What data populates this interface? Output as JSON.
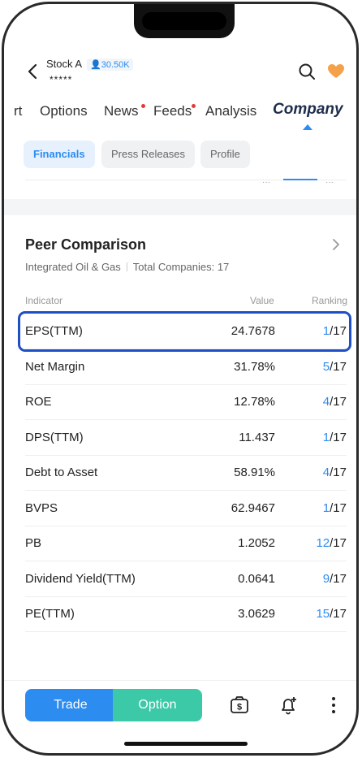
{
  "header": {
    "stock_name": "Stock A",
    "followers": "30.50K",
    "stars": "*****"
  },
  "tabs": [
    {
      "label": "rt"
    },
    {
      "label": "Options"
    },
    {
      "label": "News"
    },
    {
      "label": "Feeds"
    },
    {
      "label": "Analysis"
    },
    {
      "label": "Company"
    }
  ],
  "subtabs": [
    {
      "label": "Financials"
    },
    {
      "label": "Press Releases"
    },
    {
      "label": "Profile"
    }
  ],
  "mini": {
    "dots_left": "···",
    "dots_right": "···"
  },
  "peer": {
    "title": "Peer Comparison",
    "industry": "Integrated Oil & Gas",
    "total": "Total Companies: 17",
    "columns": {
      "indicator": "Indicator",
      "value": "Value",
      "ranking": "Ranking"
    },
    "rows": [
      {
        "indicator": "EPS(TTM)",
        "value": "24.7678",
        "rank": "1",
        "total": "/17"
      },
      {
        "indicator": "Net Margin",
        "value": "31.78%",
        "rank": "5",
        "total": "/17"
      },
      {
        "indicator": "ROE",
        "value": "12.78%",
        "rank": "4",
        "total": "/17"
      },
      {
        "indicator": "DPS(TTM)",
        "value": "11.437",
        "rank": "1",
        "total": "/17"
      },
      {
        "indicator": "Debt to Asset",
        "value": "58.91%",
        "rank": "4",
        "total": "/17"
      },
      {
        "indicator": "BVPS",
        "value": "62.9467",
        "rank": "1",
        "total": "/17"
      },
      {
        "indicator": "PB",
        "value": "1.2052",
        "rank": "12",
        "total": "/17"
      },
      {
        "indicator": "Dividend Yield(TTM)",
        "value": "0.0641",
        "rank": "9",
        "total": "/17"
      },
      {
        "indicator": "PE(TTM)",
        "value": "3.0629",
        "rank": "15",
        "total": "/17"
      }
    ]
  },
  "bottom": {
    "trade": "Trade",
    "option": "Option"
  },
  "colors": {
    "accent": "#2d8cf0",
    "option": "#3bc9a7",
    "highlight": "#1e4fc4",
    "heart": "#f5a14a"
  }
}
